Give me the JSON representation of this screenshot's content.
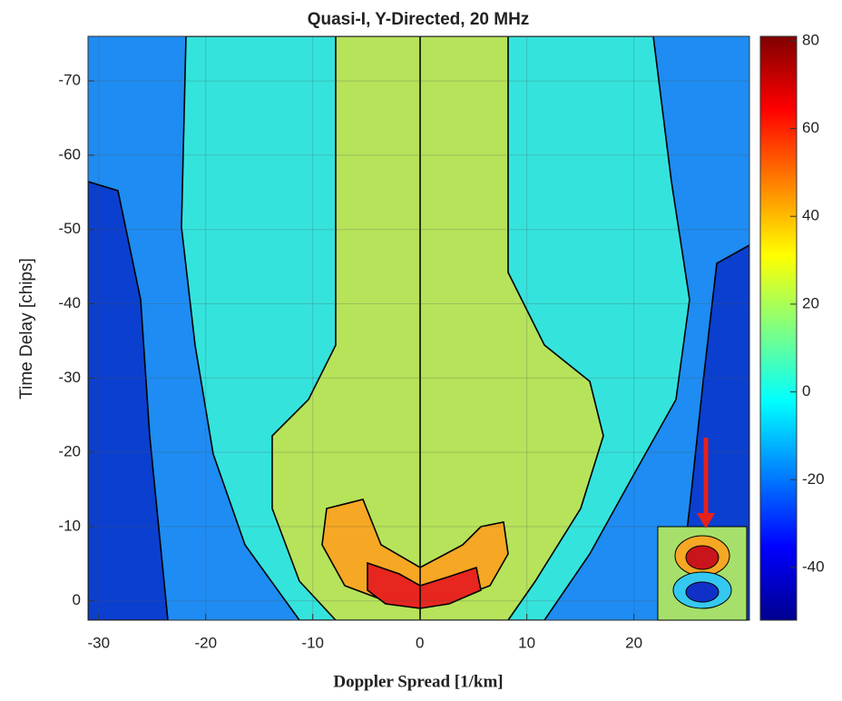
{
  "chart_data": {
    "type": "contour",
    "title": "Quasi-I, Y-Directed, 20 MHz",
    "xlabel": "Doppler Spread [1/km]",
    "ylabel": "Time Delay [chips]",
    "xlim": [
      -31,
      30.8
    ],
    "xticks": [
      -30,
      -20,
      -10,
      0,
      10,
      20
    ],
    "ylim": [
      -76,
      2.6
    ],
    "yticks": [
      -70,
      -60,
      -50,
      -40,
      -30,
      -20,
      -10,
      0
    ],
    "y_direction": "reverse",
    "grid": true,
    "colormap": "jet",
    "clim": [
      -52,
      81
    ],
    "cticks": [
      -40,
      -20,
      0,
      20,
      40,
      60,
      80
    ]
  }
}
